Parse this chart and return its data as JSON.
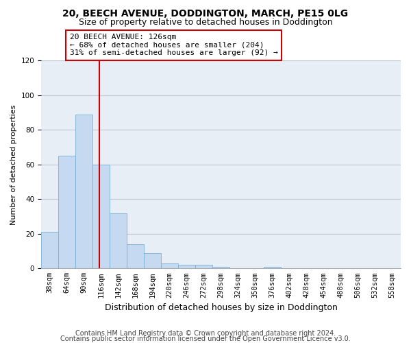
{
  "title1": "20, BEECH AVENUE, DODDINGTON, MARCH, PE15 0LG",
  "title2": "Size of property relative to detached houses in Doddington",
  "xlabel": "Distribution of detached houses by size in Doddington",
  "ylabel": "Number of detached properties",
  "categories": [
    "38sqm",
    "64sqm",
    "90sqm",
    "116sqm",
    "142sqm",
    "168sqm",
    "194sqm",
    "220sqm",
    "246sqm",
    "272sqm",
    "298sqm",
    "324sqm",
    "350sqm",
    "376sqm",
    "402sqm",
    "428sqm",
    "454sqm",
    "480sqm",
    "506sqm",
    "532sqm",
    "558sqm"
  ],
  "values": [
    21,
    65,
    89,
    60,
    32,
    14,
    9,
    3,
    2,
    2,
    1,
    0,
    0,
    1,
    0,
    0,
    0,
    0,
    0,
    0,
    0
  ],
  "bar_color": "#c5d9f1",
  "bar_edge_color": "#7ab0d4",
  "annotation_text": "20 BEECH AVENUE: 126sqm\n← 68% of detached houses are smaller (204)\n31% of semi-detached houses are larger (92) →",
  "annotation_box_color": "#ffffff",
  "annotation_box_edge": "#cc0000",
  "red_line_color": "#cc0000",
  "ylim": [
    0,
    120
  ],
  "yticks": [
    0,
    20,
    40,
    60,
    80,
    100,
    120
  ],
  "grid_color": "#c0c8d8",
  "bg_color": "#e8eef5",
  "footer1": "Contains HM Land Registry data © Crown copyright and database right 2024.",
  "footer2": "Contains public sector information licensed under the Open Government Licence v3.0.",
  "title1_fontsize": 10,
  "title2_fontsize": 9,
  "xlabel_fontsize": 9,
  "ylabel_fontsize": 8,
  "tick_fontsize": 7.5,
  "footer_fontsize": 7,
  "annot_fontsize": 8
}
